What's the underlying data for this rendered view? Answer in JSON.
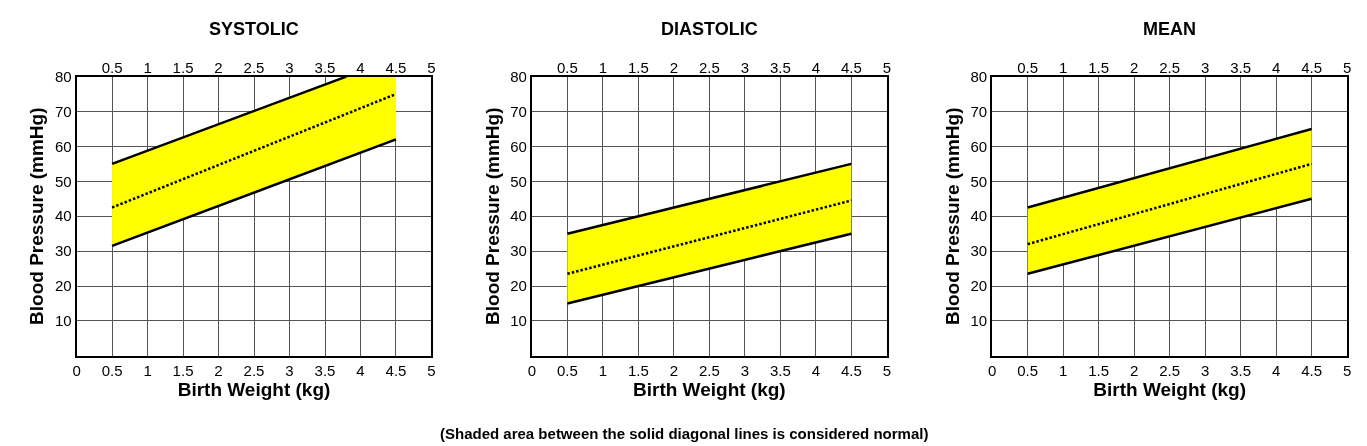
{
  "chart_data": [
    {
      "type": "line",
      "title": "SYSTOLIC",
      "xlabel": "Birth Weight (kg)",
      "ylabel": "Blood Pressure (mmHg)",
      "xlim": [
        0,
        5
      ],
      "xticks": [
        0,
        0.5,
        1,
        1.5,
        2,
        2.5,
        3,
        3.5,
        4,
        4.5,
        5
      ],
      "x2lim": [
        0,
        5
      ],
      "x2ticks": [
        0.5,
        1,
        1.5,
        2,
        2.5,
        3,
        3.5,
        4,
        4.5,
        5
      ],
      "ylim": [
        0,
        80
      ],
      "yticks": [
        10,
        20,
        30,
        40,
        50,
        60,
        70,
        80
      ],
      "grid": true,
      "series": [
        {
          "color": "#000000",
          "line_style": "solid",
          "x": [
            0.5,
            3.8
          ],
          "values": [
            55,
            80
          ]
        },
        {
          "color": "#000000",
          "line_style": "solid",
          "x": [
            0.5,
            4.5
          ],
          "values": [
            31.5,
            62
          ]
        },
        {
          "color": "#000000",
          "line_style": "dotted",
          "x": [
            0.5,
            3.8,
            4.5
          ],
          "values": [
            42.5,
            69.3,
            75
          ],
          "lower": [
            31.5,
            56.7,
            62
          ],
          "upper": [
            55,
            80,
            80
          ]
        }
      ]
    },
    {
      "type": "line",
      "title": "DIASTOLIC",
      "xlabel": "Birth Weight (kg)",
      "ylabel": "Blood Pressure (mmHg)",
      "xlim": [
        0,
        5
      ],
      "xticks": [
        0,
        0.5,
        1,
        1.5,
        2,
        2.5,
        3,
        3.5,
        4,
        4.5,
        5
      ],
      "x2lim": [
        0,
        5
      ],
      "x2ticks": [
        0.5,
        1,
        1.5,
        2,
        2.5,
        3,
        3.5,
        4,
        4.5,
        5
      ],
      "ylim": [
        0,
        80
      ],
      "yticks": [
        10,
        20,
        30,
        40,
        50,
        60,
        70,
        80
      ],
      "grid": true,
      "annotations": [
        "(Shaded area between the solid diagonal lines is considered normal)"
      ],
      "series": [
        {
          "color": "#000000",
          "line_style": "solid",
          "x": [
            0.5,
            4.5
          ],
          "values": [
            35,
            55
          ]
        },
        {
          "color": "#000000",
          "line_style": "solid",
          "x": [
            0.5,
            4.5
          ],
          "values": [
            15,
            35
          ]
        },
        {
          "color": "#000000",
          "line_style": "dotted",
          "x": [
            0.5,
            4.5
          ],
          "values": [
            23.5,
            44.5
          ],
          "lower": [
            15,
            35
          ],
          "upper": [
            35,
            55
          ]
        }
      ]
    },
    {
      "type": "line",
      "title": "MEAN",
      "xlabel": "Birth Weight (kg)",
      "ylabel": "Blood Pressure (mmHg)",
      "xlim": [
        0,
        5
      ],
      "xticks": [
        0,
        0.5,
        1,
        1.5,
        2,
        2.5,
        3,
        3.5,
        4,
        4.5,
        5
      ],
      "x2lim": [
        0,
        5
      ],
      "x2ticks": [
        0.5,
        1,
        1.5,
        2,
        2.5,
        3,
        3.5,
        4,
        4.5,
        5
      ],
      "ylim": [
        0,
        80
      ],
      "yticks": [
        10,
        20,
        30,
        40,
        50,
        60,
        70,
        80
      ],
      "grid": true,
      "series": [
        {
          "color": "#000000",
          "line_style": "solid",
          "x": [
            0.5,
            4.5
          ],
          "values": [
            42.5,
            65
          ]
        },
        {
          "color": "#000000",
          "line_style": "solid",
          "x": [
            0.5,
            4.5
          ],
          "values": [
            23.5,
            45
          ]
        },
        {
          "color": "#000000",
          "line_style": "dotted",
          "x": [
            0.5,
            4.5
          ],
          "values": [
            32,
            55
          ],
          "lower": [
            23.5,
            45
          ],
          "upper": [
            42.5,
            65
          ]
        }
      ]
    }
  ]
}
